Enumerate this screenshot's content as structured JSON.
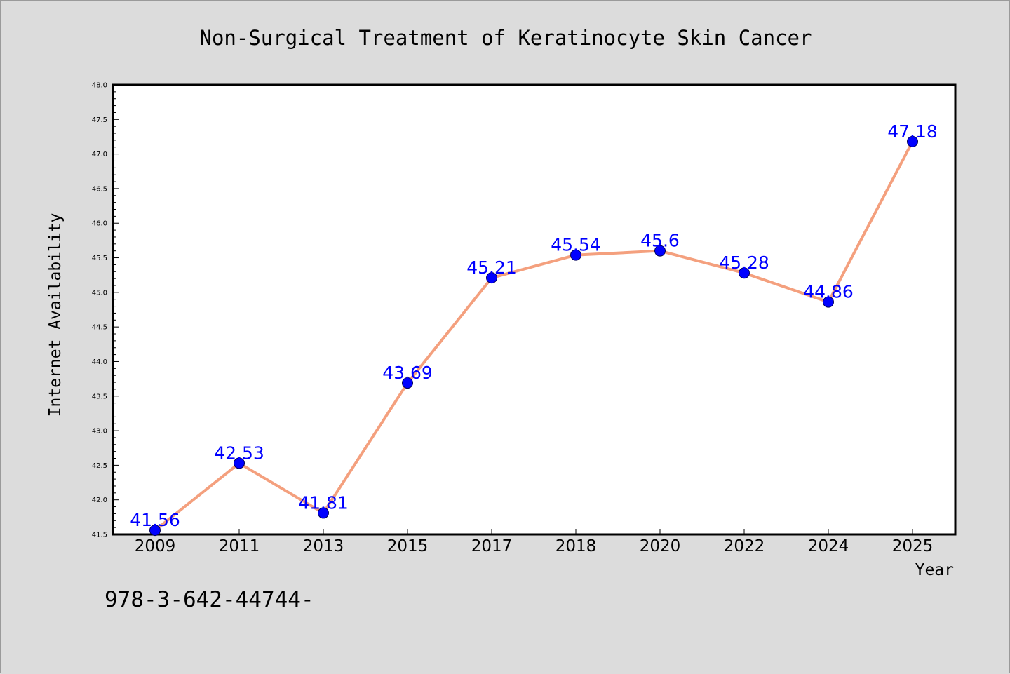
{
  "chart_data": {
    "type": "line",
    "title": "Non-Surgical Treatment of Keratinocyte Skin Cancer",
    "xlabel": "Year",
    "ylabel": "Internet Availability",
    "categories": [
      "2009",
      "2011",
      "2013",
      "2015",
      "2017",
      "2018",
      "2020",
      "2022",
      "2024",
      "2025"
    ],
    "values": [
      41.56,
      42.53,
      41.81,
      43.69,
      45.21,
      45.54,
      45.6,
      45.28,
      44.86,
      47.18
    ],
    "data_labels": [
      "41.56",
      "42.53",
      "41.81",
      "43.69",
      "45.21",
      "45.54",
      "45.6",
      "45.28",
      "44.86",
      "47.18"
    ],
    "ylim": [
      41.5,
      48.0
    ],
    "yticks": [
      "41.5",
      "42.0",
      "42.5",
      "43.0",
      "43.5",
      "44.0",
      "44.5",
      "45.0",
      "45.5",
      "46.0",
      "46.5",
      "47.0",
      "47.5",
      "48.0"
    ],
    "grid": false,
    "line_color": "#f4a07e",
    "marker_color": "#0000ff",
    "label_color": "#0000ff",
    "background_color": "#dcdcdc"
  },
  "footnote": "978-3-642-44744-"
}
